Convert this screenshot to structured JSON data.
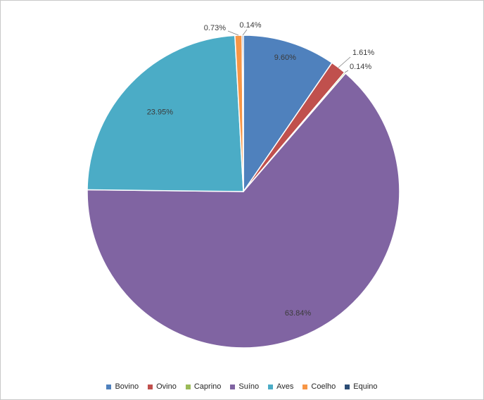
{
  "chart_data": {
    "type": "pie",
    "title": "",
    "categories": [
      "Bovino",
      "Ovino",
      "Caprino",
      "Suíno",
      "Aves",
      "Coelho",
      "Equino"
    ],
    "values": [
      9.6,
      1.61,
      0.14,
      63.84,
      23.95,
      0.73,
      0.14
    ],
    "colors": [
      "#4F81BD",
      "#C0504D",
      "#9BBB59",
      "#8064A2",
      "#4BACC6",
      "#F79646",
      "#2C4D75"
    ],
    "data_labels": [
      "9.60%",
      "1.61%",
      "0.14%",
      "63.84%",
      "23.95%",
      "0.73%",
      "0.14%"
    ],
    "label_format": "percent-2dp",
    "start_angle_deg": 0,
    "direction": "clockwise",
    "legend_position": "bottom",
    "grid": false
  }
}
